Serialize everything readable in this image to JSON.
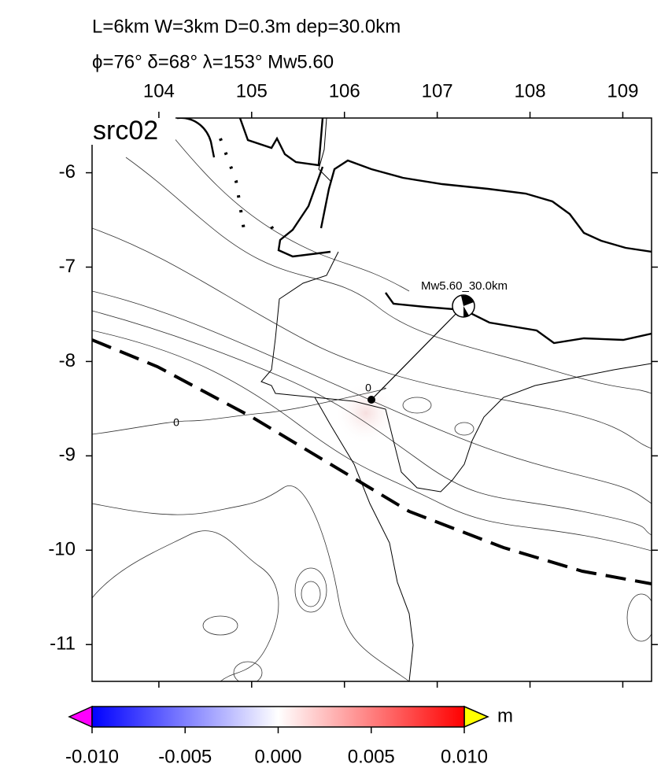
{
  "header": {
    "line1": "L=6km W=3km D=0.3m dep=30.0km",
    "line2": "ϕ=76° δ=68° λ=153° Mw5.60"
  },
  "map": {
    "label": "src02",
    "event_label": "Mw5.60_30.0km",
    "contour_labels": [
      "0",
      "0"
    ],
    "xlim": [
      103.28,
      109.31
    ],
    "ylim": [
      -11.39,
      -5.42
    ],
    "xticks": [
      104,
      105,
      106,
      107,
      108,
      109
    ],
    "yticks": [
      -6,
      -7,
      -8,
      -9,
      -10,
      -11
    ]
  },
  "colorbar": {
    "unit": "m",
    "range": [
      -0.01,
      0.01
    ],
    "ticks": [
      {
        "value": -0.01,
        "label": "-0.010"
      },
      {
        "value": -0.005,
        "label": "-0.005"
      },
      {
        "value": 0,
        "label": "0.000"
      },
      {
        "value": 0.005,
        "label": "0.005"
      },
      {
        "value": 0.01,
        "label": "0.010"
      }
    ]
  }
}
